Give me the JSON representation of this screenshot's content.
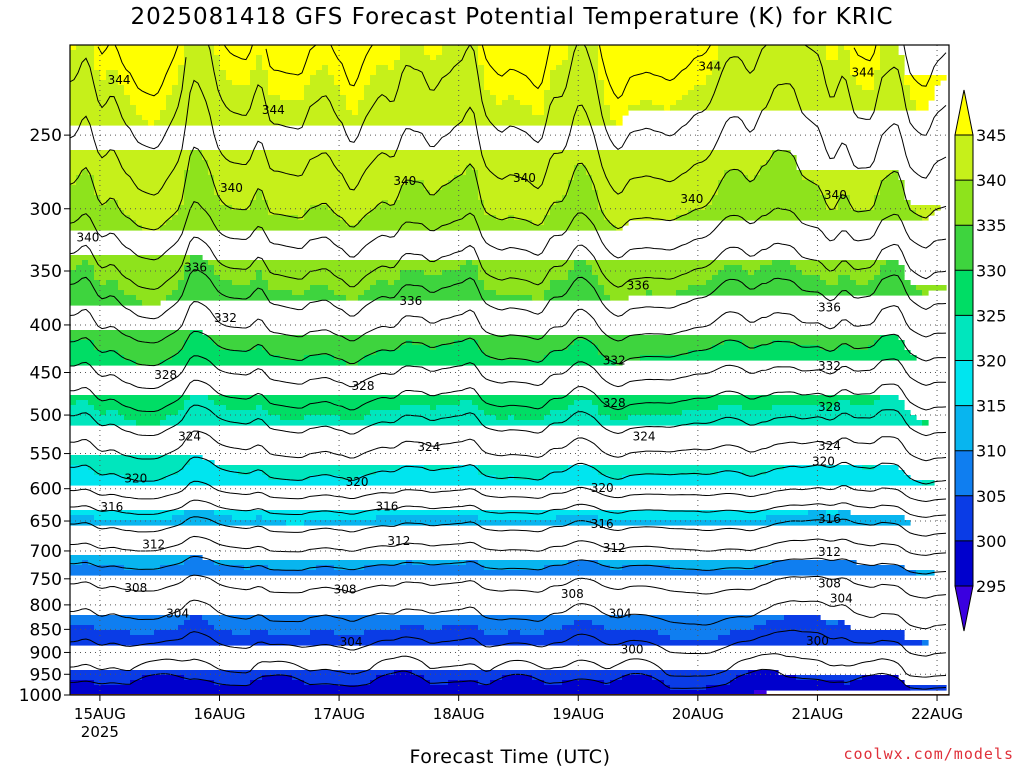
{
  "chart_data": {
    "type": "heatmap",
    "title": "2025081418 GFS Forecast Potential Temperature (K) for KRIC",
    "xlabel": "Forecast Time (UTC)",
    "ylabel": "",
    "y_scale": "log-pressure",
    "y_reversed": true,
    "ylim": [
      1000,
      200
    ],
    "y_ticks": [
      250,
      300,
      350,
      400,
      450,
      500,
      550,
      600,
      650,
      700,
      750,
      800,
      850,
      900,
      950,
      1000
    ],
    "x_ticks": [
      {
        "label": "15AUG",
        "sublabel": "2025",
        "day": 15
      },
      {
        "label": "16AUG",
        "sublabel": "",
        "day": 16
      },
      {
        "label": "17AUG",
        "sublabel": "",
        "day": 17
      },
      {
        "label": "18AUG",
        "sublabel": "",
        "day": 18
      },
      {
        "label": "19AUG",
        "sublabel": "",
        "day": 19
      },
      {
        "label": "20AUG",
        "sublabel": "",
        "day": 20
      },
      {
        "label": "21AUG",
        "sublabel": "",
        "day": 21
      },
      {
        "label": "22AUG",
        "sublabel": "",
        "day": 22
      }
    ],
    "xlim_day": [
      14.75,
      22.1
    ],
    "grid": true,
    "colorbar": {
      "levels": [
        295,
        300,
        305,
        310,
        315,
        320,
        325,
        330,
        335,
        340,
        345
      ],
      "labels": [
        "295",
        "300",
        "305",
        "310",
        "315",
        "320",
        "325",
        "330",
        "335",
        "340",
        "345"
      ],
      "colors": [
        "#3a00e0",
        "#0000cd",
        "#0a3ce6",
        "#0f7ef0",
        "#08b5ef",
        "#00e5ef",
        "#00e6bd",
        "#00dd65",
        "#3ed43e",
        "#8ee31c",
        "#c6f01a",
        "#ffff00"
      ],
      "extend": "both"
    },
    "contour_levels": [
      300,
      302,
      304,
      306,
      308,
      310,
      312,
      314,
      316,
      318,
      320,
      322,
      324,
      326,
      328,
      330,
      332,
      334,
      336,
      338,
      340,
      342,
      344,
      346
    ],
    "profile": [
      {
        "p": 1000,
        "theta": 299
      },
      {
        "p": 950,
        "theta": 302
      },
      {
        "p": 900,
        "theta": 303.5
      },
      {
        "p": 850,
        "theta": 305
      },
      {
        "p": 800,
        "theta": 306.5
      },
      {
        "p": 750,
        "theta": 308.5
      },
      {
        "p": 700,
        "theta": 311.5
      },
      {
        "p": 650,
        "theta": 314.5
      },
      {
        "p": 600,
        "theta": 318.5
      },
      {
        "p": 550,
        "theta": 321.5
      },
      {
        "p": 500,
        "theta": 324.5
      },
      {
        "p": 450,
        "theta": 328
      },
      {
        "p": 400,
        "theta": 332
      },
      {
        "p": 350,
        "theta": 335.5
      },
      {
        "p": 300,
        "theta": 339.5
      },
      {
        "p": 250,
        "theta": 342.5
      },
      {
        "p": 200,
        "theta": 345.5
      }
    ],
    "contour_labels": [
      {
        "day": 15.16,
        "p": 218,
        "text": "344"
      },
      {
        "day": 16.45,
        "p": 235,
        "text": "344"
      },
      {
        "day": 20.1,
        "p": 211,
        "text": "344"
      },
      {
        "day": 21.38,
        "p": 214,
        "text": "344"
      },
      {
        "day": 14.9,
        "p": 322,
        "text": "340"
      },
      {
        "day": 16.1,
        "p": 285,
        "text": "340"
      },
      {
        "day": 17.55,
        "p": 280,
        "text": "340"
      },
      {
        "day": 18.55,
        "p": 278,
        "text": "340"
      },
      {
        "day": 19.95,
        "p": 293,
        "text": "340"
      },
      {
        "day": 21.15,
        "p": 290,
        "text": "340"
      },
      {
        "day": 15.8,
        "p": 347,
        "text": "336"
      },
      {
        "day": 17.6,
        "p": 377,
        "text": "336"
      },
      {
        "day": 19.5,
        "p": 363,
        "text": "336"
      },
      {
        "day": 21.1,
        "p": 383,
        "text": "336"
      },
      {
        "day": 16.05,
        "p": 393,
        "text": "332"
      },
      {
        "day": 19.3,
        "p": 437,
        "text": "332"
      },
      {
        "day": 21.1,
        "p": 443,
        "text": "332"
      },
      {
        "day": 15.55,
        "p": 453,
        "text": "328"
      },
      {
        "day": 17.2,
        "p": 465,
        "text": "328"
      },
      {
        "day": 19.3,
        "p": 485,
        "text": "328"
      },
      {
        "day": 21.1,
        "p": 490,
        "text": "328"
      },
      {
        "day": 15.75,
        "p": 527,
        "text": "324"
      },
      {
        "day": 17.75,
        "p": 541,
        "text": "324"
      },
      {
        "day": 19.55,
        "p": 527,
        "text": "324"
      },
      {
        "day": 21.1,
        "p": 540,
        "text": "324"
      },
      {
        "day": 15.3,
        "p": 585,
        "text": "320"
      },
      {
        "day": 17.15,
        "p": 590,
        "text": "320"
      },
      {
        "day": 19.2,
        "p": 599,
        "text": "320"
      },
      {
        "day": 21.05,
        "p": 561,
        "text": "320"
      },
      {
        "day": 15.1,
        "p": 628,
        "text": "316"
      },
      {
        "day": 17.4,
        "p": 627,
        "text": "316"
      },
      {
        "day": 19.2,
        "p": 655,
        "text": "316"
      },
      {
        "day": 21.1,
        "p": 647,
        "text": "316"
      },
      {
        "day": 15.45,
        "p": 689,
        "text": "312"
      },
      {
        "day": 17.5,
        "p": 683,
        "text": "312"
      },
      {
        "day": 19.3,
        "p": 695,
        "text": "312"
      },
      {
        "day": 21.1,
        "p": 702,
        "text": "312"
      },
      {
        "day": 15.3,
        "p": 767,
        "text": "308"
      },
      {
        "day": 17.05,
        "p": 770,
        "text": "308"
      },
      {
        "day": 18.95,
        "p": 779,
        "text": "308"
      },
      {
        "day": 21.1,
        "p": 759,
        "text": "308"
      },
      {
        "day": 15.65,
        "p": 817,
        "text": "304"
      },
      {
        "day": 17.1,
        "p": 877,
        "text": "304"
      },
      {
        "day": 19.35,
        "p": 817,
        "text": "304"
      },
      {
        "day": 21.2,
        "p": 787,
        "text": "304"
      },
      {
        "day": 19.45,
        "p": 893,
        "text": "300"
      },
      {
        "day": 21.0,
        "p": 875,
        "text": "300"
      }
    ],
    "terrain_color": "#a0522d"
  },
  "credit": "coolwx.com/models"
}
